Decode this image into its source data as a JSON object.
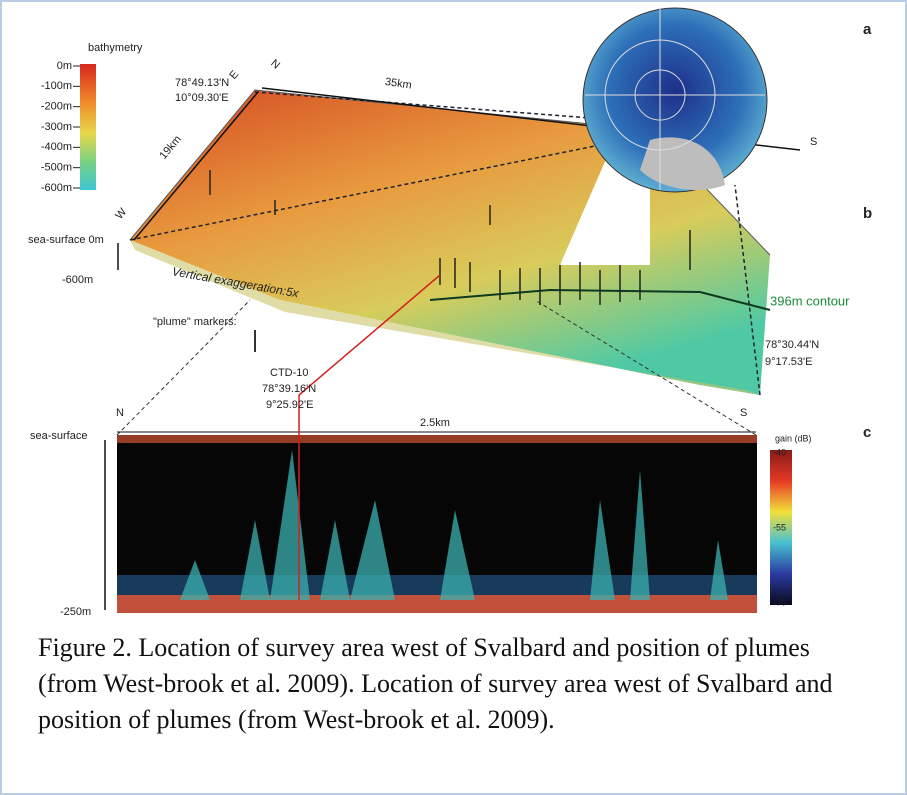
{
  "figure": {
    "panel_labels": [
      "a",
      "b",
      "c"
    ],
    "bathymetry": {
      "title": "bathymetry",
      "ticks": [
        "0m",
        "-100m",
        "-200m",
        "-300m",
        "-400m",
        "-500m",
        "-600m"
      ]
    },
    "corner_nw": [
      "78°49.13'N",
      "10°09.30'E"
    ],
    "corner_se": [
      "78°30.44'N",
      "9°17.53'E"
    ],
    "compass": {
      "north": "N",
      "east": "E",
      "west": "W",
      "south": "S"
    },
    "length": "35km",
    "width": "19km",
    "depth_top": "sea-surface 0m",
    "depth_bottom": "-600m",
    "exaggeration": "Vertical exaggeration:5x",
    "plume_markers": "\"plume\" markers:",
    "contour": "396m contour",
    "ctd": {
      "name": "CTD-10",
      "lat": "78°39.16'N",
      "lon": "9°25.92'E"
    },
    "echogram": {
      "north": "N",
      "south": "S",
      "length": "2.5km",
      "top": "sea-surface",
      "bottom": "-250m",
      "gain_title": "gain (dB)",
      "gain_ticks": [
        "-40",
        "-55",
        "-70"
      ]
    },
    "caption": "Figure 2.  Location of survey area west of Svalbard and position of plumes (from West-brook et al. 2009). Location of survey area west of Svalbard and position of plumes (from West-brook et al. 2009)."
  }
}
